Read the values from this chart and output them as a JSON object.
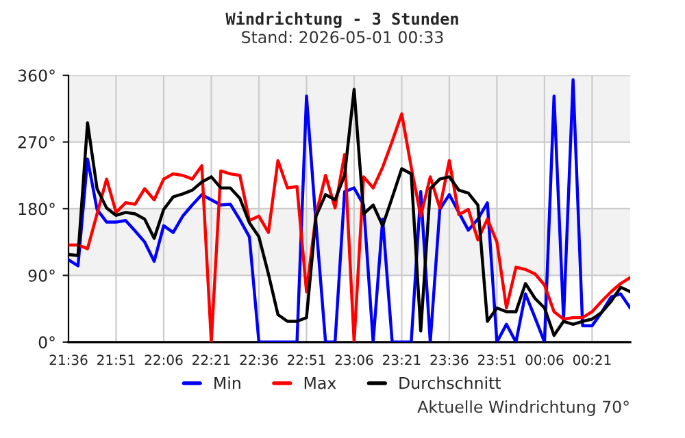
{
  "chart_data": {
    "type": "line",
    "title": "Windrichtung - 3 Stunden",
    "subtitle": "Stand: 2026-05-01 00:33",
    "annotations": [
      "Aktuelle Windrichtung 70°"
    ],
    "x": [
      "2026-04-30T21:36",
      "2026-04-30T21:39",
      "2026-04-30T21:42",
      "2026-04-30T21:45",
      "2026-04-30T21:48",
      "2026-04-30T21:51",
      "2026-04-30T21:54",
      "2026-04-30T21:57",
      "2026-04-30T22:00",
      "2026-04-30T22:03",
      "2026-04-30T22:06",
      "2026-04-30T22:09",
      "2026-04-30T22:12",
      "2026-04-30T22:15",
      "2026-04-30T22:18",
      "2026-04-30T22:21",
      "2026-04-30T22:24",
      "2026-04-30T22:27",
      "2026-04-30T22:30",
      "2026-04-30T22:33",
      "2026-04-30T22:36",
      "2026-04-30T22:39",
      "2026-04-30T22:42",
      "2026-04-30T22:45",
      "2026-04-30T22:48",
      "2026-04-30T22:51",
      "2026-04-30T22:54",
      "2026-04-30T22:57",
      "2026-04-30T23:00",
      "2026-04-30T23:03",
      "2026-04-30T23:06",
      "2026-04-30T23:09",
      "2026-04-30T23:12",
      "2026-04-30T23:15",
      "2026-04-30T23:18",
      "2026-04-30T23:21",
      "2026-04-30T23:24",
      "2026-04-30T23:27",
      "2026-04-30T23:30",
      "2026-04-30T23:33",
      "2026-04-30T23:36",
      "2026-04-30T23:39",
      "2026-04-30T23:42",
      "2026-04-30T23:45",
      "2026-04-30T23:48",
      "2026-04-30T23:51",
      "2026-04-30T23:54",
      "2026-04-30T23:57",
      "2026-05-01T00:00",
      "2026-05-01T00:03",
      "2026-05-01T00:06",
      "2026-05-01T00:09",
      "2026-05-01T00:12",
      "2026-05-01T00:15",
      "2026-05-01T00:18",
      "2026-05-01T00:21",
      "2026-05-01T00:24",
      "2026-05-01T00:27",
      "2026-05-01T00:30",
      "2026-05-01T00:33"
    ],
    "series": [
      {
        "name": "Min",
        "color": "#0000ff",
        "values": [
          111,
          103,
          247,
          179,
          162,
          162,
          164,
          150,
          135,
          109,
          157,
          148,
          170,
          185,
          199,
          192,
          185,
          186,
          165,
          142,
          0,
          0,
          0,
          0,
          0,
          332,
          160,
          0,
          0,
          203,
          208,
          185,
          0,
          166,
          0,
          0,
          0,
          203,
          0,
          179,
          199,
          175,
          151,
          166,
          188,
          0,
          24,
          0,
          65,
          33,
          0,
          332,
          31,
          354,
          22,
          22,
          40,
          61,
          65,
          46
        ]
      },
      {
        "name": "Max",
        "color": "#ff0000",
        "values": [
          131,
          131,
          126,
          173,
          220,
          175,
          188,
          186,
          207,
          192,
          220,
          227,
          225,
          220,
          238,
          0,
          231,
          227,
          225,
          164,
          170,
          148,
          245,
          208,
          210,
          68,
          172,
          225,
          181,
          253,
          0,
          223,
          208,
          236,
          271,
          308,
          236,
          170,
          223,
          181,
          245,
          172,
          179,
          138,
          166,
          135,
          46,
          101,
          98,
          92,
          77,
          41,
          31,
          33,
          33,
          41,
          55,
          68,
          79,
          87
        ]
      },
      {
        "name": "Durchschnitt",
        "color": "#000000",
        "values": [
          118,
          117,
          296,
          207,
          181,
          171,
          175,
          173,
          166,
          140,
          179,
          196,
          200,
          205,
          216,
          223,
          208,
          208,
          194,
          161,
          142,
          92,
          37,
          28,
          28,
          33,
          170,
          199,
          192,
          225,
          341,
          173,
          185,
          157,
          195,
          234,
          227,
          15,
          207,
          220,
          223,
          205,
          201,
          185,
          28,
          46,
          41,
          41,
          79,
          59,
          46,
          9,
          28,
          24,
          28,
          31,
          40,
          55,
          74,
          68
        ]
      }
    ],
    "xlim": [
      "2026-04-30T21:36",
      "2026-05-01T00:33"
    ],
    "xticks": [
      {
        "value": "2026-04-30T21:36",
        "label": "21:36"
      },
      {
        "value": "2026-04-30T21:51",
        "label": "21:51"
      },
      {
        "value": "2026-04-30T22:06",
        "label": "22:06"
      },
      {
        "value": "2026-04-30T22:21",
        "label": "22:21"
      },
      {
        "value": "2026-04-30T22:36",
        "label": "22:36"
      },
      {
        "value": "2026-04-30T22:51",
        "label": "22:51"
      },
      {
        "value": "2026-04-30T23:06",
        "label": "23:06"
      },
      {
        "value": "2026-04-30T23:21",
        "label": "23:21"
      },
      {
        "value": "2026-04-30T23:36",
        "label": "23:36"
      },
      {
        "value": "2026-04-30T23:51",
        "label": "23:51"
      },
      {
        "value": "2026-05-01T00:06",
        "label": "00:06"
      },
      {
        "value": "2026-05-01T00:21",
        "label": "00:21"
      }
    ],
    "ylim": [
      0,
      360
    ],
    "yticks": [
      {
        "value": 0,
        "label": "0°"
      },
      {
        "value": 90,
        "label": "90°"
      },
      {
        "value": 180,
        "label": "180°"
      },
      {
        "value": 270,
        "label": "270°"
      },
      {
        "value": 360,
        "label": "360°"
      }
    ],
    "bands": [
      {
        "axis": "y",
        "from": 90,
        "to": 180,
        "color": "#f2f2f2"
      },
      {
        "axis": "y",
        "from": 270,
        "to": 360,
        "color": "#f2f2f2"
      }
    ],
    "grid": true,
    "legend": "bottom",
    "line_style": "solid",
    "marker": "none"
  }
}
